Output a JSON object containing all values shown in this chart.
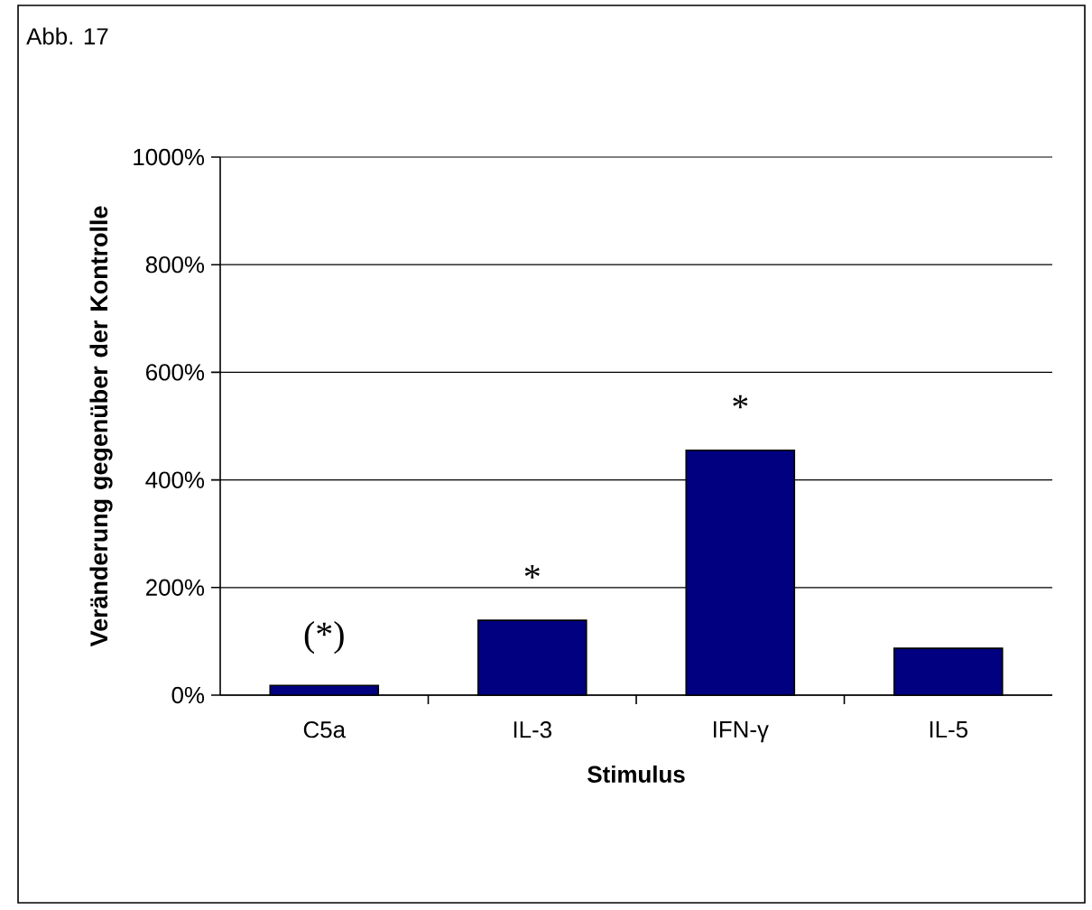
{
  "chart_data": {
    "type": "bar",
    "title": "Abb. 17",
    "xlabel": "Stimulus",
    "ylabel": "Veränderung gegenüber der Kontrolle",
    "categories": [
      "C5a",
      "IL-3",
      "IFN-γ",
      "IL-5"
    ],
    "values": [
      18,
      139,
      455,
      87
    ],
    "color": "#000080",
    "ylim": [
      0,
      1000
    ],
    "yticks": [
      {
        "value": 0,
        "label": "0%"
      },
      {
        "value": 200,
        "label": "200%"
      },
      {
        "value": 400,
        "label": "400%"
      },
      {
        "value": 600,
        "label": "600%"
      },
      {
        "value": 800,
        "label": "800%"
      },
      {
        "value": 1000,
        "label": "1000%"
      }
    ],
    "grid": "y",
    "annotations": [
      "(*)",
      "*",
      "*"
    ]
  }
}
